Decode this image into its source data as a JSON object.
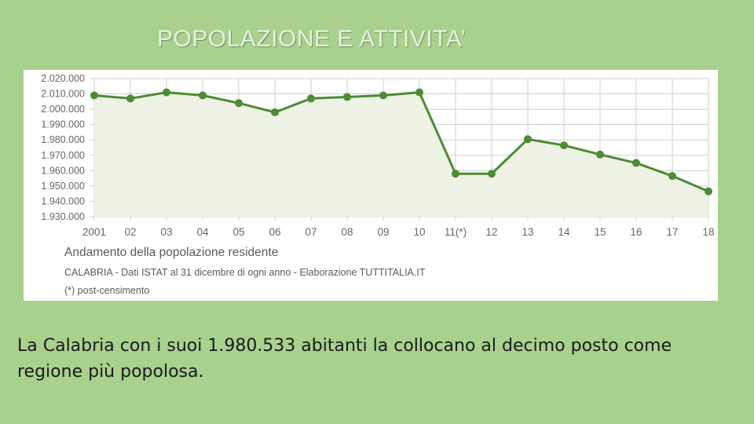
{
  "slide": {
    "title": "POPOLAZIONE E ATTIVITA’",
    "body": "La Calabria con i suoi 1.980.533 abitanti la collocano al decimo posto come regione più popolosa."
  },
  "chart_data": {
    "type": "area",
    "title": "Andamento della popolazione residente",
    "subtitle": "CALABRIA - Dati ISTAT al 31 dicembre di ogni anno - Elaborazione TUTTITALIA.IT",
    "note": "(*) post-censimento",
    "xlabel": "",
    "ylabel": "",
    "categories": [
      "2001",
      "02",
      "03",
      "04",
      "05",
      "06",
      "07",
      "08",
      "09",
      "10",
      "11(*)",
      "12",
      "13",
      "14",
      "15",
      "16",
      "17",
      "18"
    ],
    "values": [
      2009000,
      2007000,
      2011000,
      2009000,
      2004000,
      1998000,
      2007000,
      2008000,
      2009000,
      2011000,
      1958000,
      1958000,
      1980500,
      1976500,
      1970500,
      1965000,
      1956500,
      1946500
    ],
    "ylim": [
      1930000,
      2020000
    ],
    "yticks": [
      "1.930.000",
      "1.940.000",
      "1.950.000",
      "1.960.000",
      "1.970.000",
      "1.980.000",
      "1.990.000",
      "2.000.000",
      "2.010.000",
      "2.020.000"
    ],
    "grid": true,
    "colors": {
      "line": "#4f8a35",
      "fill": "#eef2e4",
      "grid": "#cfcfcf",
      "text": "#5a5a5a"
    }
  }
}
